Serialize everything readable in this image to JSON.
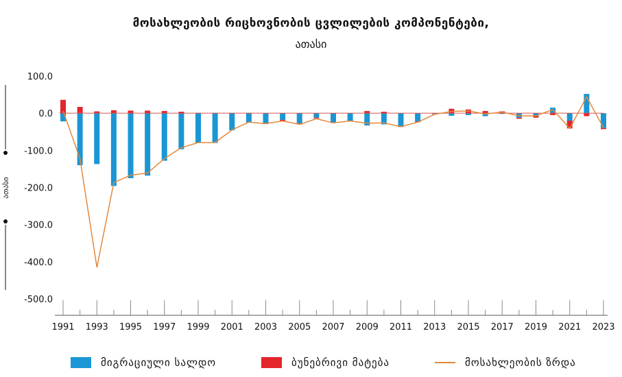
{
  "title": "მოსახლეობის რიცხოვნობის ცვლილების კომპონენტები,",
  "subtitle": "ათასი",
  "chart_data": {
    "type": "bar",
    "title": "მოსახლეობის რიცხოვნობის ცვლილების კომპონენტები,",
    "subtitle": "ათასი",
    "ylabel": "ათასი",
    "ylim": [
      -500,
      100
    ],
    "y_ticks": [
      "100.0",
      "0.0",
      "-100.0",
      "-200.0",
      "-300.0",
      "-400.0",
      "-500.0"
    ],
    "y_tick_values": [
      100,
      0,
      -100,
      -200,
      -300,
      -400,
      -500
    ],
    "x": [
      1991,
      1992,
      1993,
      1994,
      1995,
      1996,
      1997,
      1998,
      1999,
      2000,
      2001,
      2002,
      2003,
      2004,
      2005,
      2006,
      2007,
      2008,
      2009,
      2010,
      2011,
      2012,
      2013,
      2014,
      2015,
      2016,
      2017,
      2018,
      2019,
      2020,
      2021,
      2022,
      2023
    ],
    "x_tick_labels": [
      "1991",
      "1993",
      "1995",
      "1997",
      "1999",
      "2001",
      "2003",
      "2005",
      "2007",
      "2009",
      "2011",
      "2013",
      "2015",
      "2017",
      "2019",
      "2021",
      "2023"
    ],
    "grid": false,
    "legend_position": "bottom",
    "series": [
      {
        "name": "მიგრაციული სალდო",
        "type": "bar",
        "color": "#1a96d4",
        "values": [
          -22,
          -140,
          -137,
          -196,
          -175,
          -168,
          -128,
          -97,
          -80,
          -80,
          -46,
          -25,
          -28,
          -18,
          -27,
          -12,
          -25,
          -20,
          -33,
          -30,
          -35,
          -22,
          -2,
          -7,
          -5,
          -8,
          -2,
          -12,
          -8,
          15,
          -20,
          52,
          -40
        ]
      },
      {
        "name": "ბუნებრივი მატება",
        "type": "bar",
        "color": "#e3262c",
        "values": [
          36,
          17,
          5,
          8,
          7,
          7,
          6,
          4,
          1,
          1,
          1,
          1,
          -1,
          -3,
          -3,
          -2,
          -1,
          -1,
          6,
          4,
          -2,
          -2,
          -1,
          12,
          10,
          6,
          5,
          -3,
          -4,
          -5,
          -21,
          -8,
          -3
        ]
      },
      {
        "name": "მოსახლეობის ზრდა",
        "type": "line",
        "color": "#e5873a",
        "values": [
          6,
          -122,
          -415,
          -187,
          -167,
          -161,
          -122,
          -93,
          -79,
          -79,
          -45,
          -24,
          -28,
          -21,
          -30,
          -15,
          -26,
          -21,
          -27,
          -26,
          -36,
          -24,
          -3,
          5,
          6,
          -2,
          3,
          -7,
          -7,
          10,
          -41,
          44,
          -39
        ]
      }
    ]
  }
}
